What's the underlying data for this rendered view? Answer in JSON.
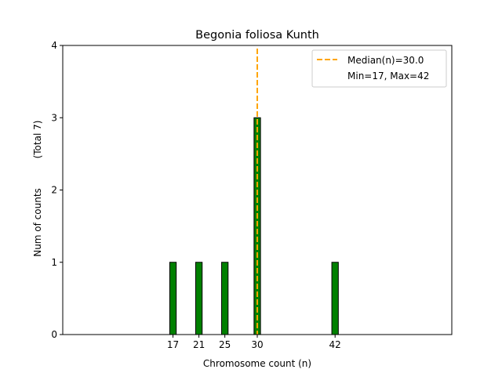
{
  "chart_data": {
    "type": "bar",
    "title": "Begonia foliosa Kunth",
    "xlabel": "Chromosome count (n)",
    "ylabel": "Num of counts",
    "ylabel2": "(Total 7)",
    "xlim": [
      0,
      60
    ],
    "ylim": [
      0,
      4
    ],
    "xticks": [
      17,
      21,
      25,
      30,
      42
    ],
    "yticks": [
      0,
      1,
      2,
      3,
      4
    ],
    "bin_range": [
      0,
      45.5
    ],
    "bar_width": 1,
    "x": [
      17,
      21,
      25,
      30,
      42
    ],
    "values": [
      1,
      1,
      1,
      3,
      1
    ],
    "bar_color": "#008000",
    "median": 30.0,
    "median_color": "#FFA500",
    "legend": {
      "placement": "top-right",
      "entries": [
        "Median(n)=30.0",
        "Min=17, Max=42"
      ]
    }
  }
}
